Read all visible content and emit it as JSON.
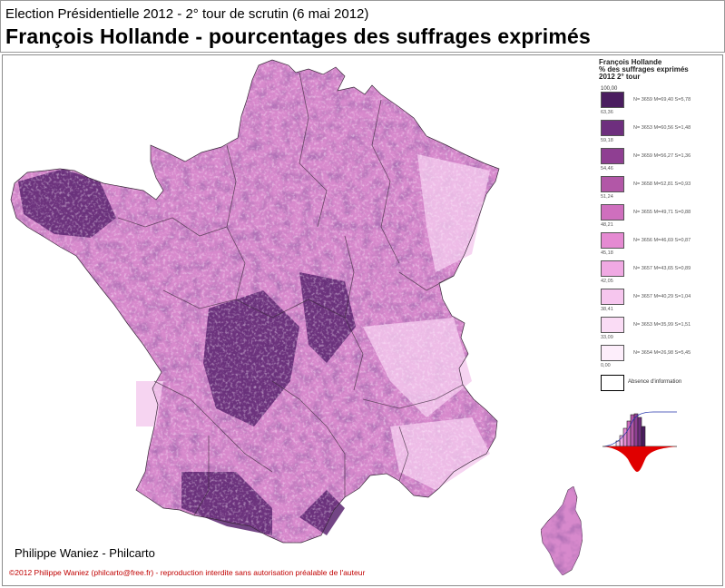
{
  "header": {
    "subtitle": "Election Présidentielle 2012 - 2° tour de scrutin (6 mai 2012)",
    "title": "François Hollande - pourcentages des suffrages exprimés"
  },
  "legend": {
    "title_line1": "François Hollande",
    "title_line2": "% des suffrages exprimés",
    "title_line3": "2012 2° tour",
    "max": "100,00",
    "classes": [
      {
        "stats": "N= 3659  M=69,40  S=5,78",
        "bound": "63,36",
        "color": "#4a1d5f"
      },
      {
        "stats": "N= 3653  M=60,56  S=1,48",
        "bound": "59,18",
        "color": "#6e2f7e"
      },
      {
        "stats": "N= 3659  M=56,27  S=1,36",
        "bound": "54,46",
        "color": "#8f3f92"
      },
      {
        "stats": "N= 3658  M=52,81  S=0,93",
        "bound": "51,24",
        "color": "#b257a7"
      },
      {
        "stats": "N= 3655  M=49,71  S=0,88",
        "bound": "48,21",
        "color": "#cf6fbe"
      },
      {
        "stats": "N= 3656  M=46,69  S=0,87",
        "bound": "45,18",
        "color": "#e58ad2"
      },
      {
        "stats": "N= 3657  M=43,65  S=0,89",
        "bound": "42,05",
        "color": "#f0a9e3"
      },
      {
        "stats": "N= 3657  M=40,29  S=1,04",
        "bound": "38,41",
        "color": "#f6c6ee"
      },
      {
        "stats": "N= 3653  M=35,99  S=1,51",
        "bound": "33,09",
        "color": "#fadcf5"
      },
      {
        "stats": "N= 3654  M=26,98  S=5,45",
        "bound": "0,00",
        "color": "#fdeefb"
      }
    ],
    "absence_label": "Absence d'information"
  },
  "map": {
    "base_color": "#d789cc",
    "dark_color": "#5a2470",
    "light_color": "#f4c9ee",
    "border_color": "#3a2a3a"
  },
  "footer": {
    "author": "Philippe Waniez - Philcarto",
    "copyright": "©2012  Philippe Waniez (philcarto@free.fr) - reproduction interdite sans autorisation préalable de l'auteur"
  }
}
